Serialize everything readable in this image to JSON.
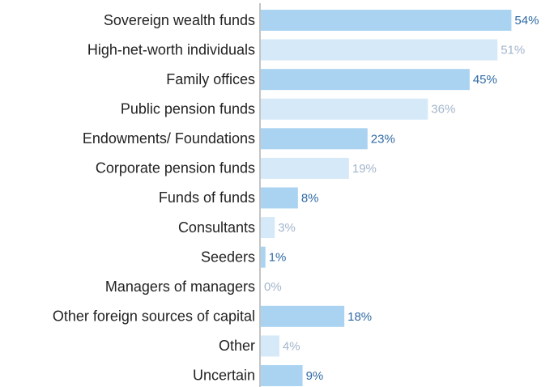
{
  "chart_data": {
    "type": "hbar",
    "categories": [
      "Sovereign wealth funds",
      "High-net-worth individuals",
      "Family offices",
      "Public pension funds",
      "Endowments/ Foundations",
      "Corporate pension funds",
      "Funds of funds",
      "Consultants",
      "Seeders",
      "Managers of managers",
      "Other foreign sources of capital",
      "Other",
      "Uncertain"
    ],
    "values": [
      54,
      51,
      45,
      36,
      23,
      19,
      8,
      3,
      1,
      0,
      18,
      4,
      9
    ],
    "value_labels": [
      "54%",
      "51%",
      "45%",
      "36%",
      "23%",
      "19%",
      "8%",
      "3%",
      "1%",
      "0%",
      "18%",
      "4%",
      "9%"
    ],
    "colors": [
      "#a9d3f1",
      "#d5e9f8",
      "#a9d3f1",
      "#d5e9f8",
      "#a9d3f1",
      "#d5e9f8",
      "#a9d3f1",
      "#d5e9f8",
      "#a9d3f1",
      "#d5e9f8",
      "#a9d3f1",
      "#d5e9f8",
      "#a9d3f1"
    ],
    "label_colors": [
      "#2f6aa3",
      "#a3b5cb",
      "#2f6aa3",
      "#a3b5cb",
      "#2f6aa3",
      "#a3b5cb",
      "#2f6aa3",
      "#a3b5cb",
      "#2f6aa3",
      "#a3b5cb",
      "#2f6aa3",
      "#a3b5cb",
      "#2f6aa3"
    ]
  }
}
